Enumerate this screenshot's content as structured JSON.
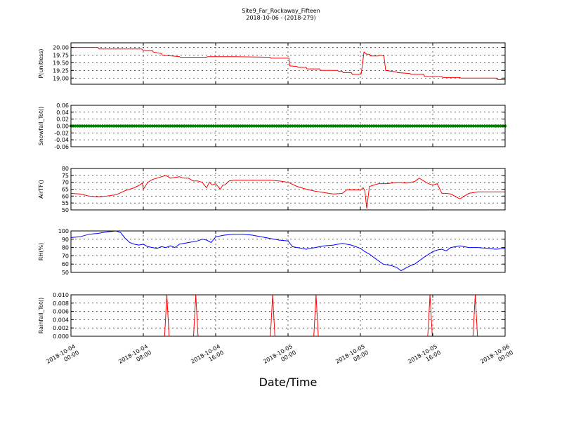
{
  "figure": {
    "title_line1": "Site9_Far_Rockaway_Fifteen",
    "title_line2": "2018-10-06 - (2018-279)",
    "xlabel": "Date/Time",
    "xticks": [
      {
        "t": 0,
        "line1": "2018-10-04",
        "line2": "00:00"
      },
      {
        "t": 8,
        "line1": "2018-10-04",
        "line2": "08:00"
      },
      {
        "t": 16,
        "line1": "2018-10-04",
        "line2": "16:00"
      },
      {
        "t": 24,
        "line1": "2018-10-05",
        "line2": "00:00"
      },
      {
        "t": 32,
        "line1": "2018-10-05",
        "line2": "08:00"
      },
      {
        "t": 40,
        "line1": "2018-10-05",
        "line2": "16:00"
      },
      {
        "t": 48,
        "line1": "2018-10-06",
        "line2": "00:00"
      }
    ]
  },
  "chart_data": [
    {
      "type": "line",
      "ylabel": "P(unitless)",
      "ylim": [
        18.8,
        20.15
      ],
      "yticks": [
        "19.00",
        "19.25",
        "19.50",
        "19.75",
        "20.00"
      ],
      "ytick_values": [
        19.0,
        19.25,
        19.5,
        19.75,
        20.0
      ],
      "grid": true,
      "color": "#ff0000",
      "x_hours": [
        0,
        3,
        3.1,
        7.8,
        8,
        9,
        9.1,
        10,
        10.1,
        12,
        12.1,
        15,
        15.1,
        18,
        18.1,
        22,
        22.1,
        24.1,
        24.2,
        25,
        25.1,
        26,
        26.1,
        27.5,
        27.6,
        29.5,
        29.6,
        30,
        30.1,
        31,
        31.1,
        32,
        32.1,
        32.4,
        32.7,
        33,
        33.1,
        34,
        34.1,
        34.6,
        34.8,
        36,
        36.1,
        37.5,
        37.6,
        39,
        39.1,
        41,
        41.1,
        43,
        43.1,
        47,
        47.2,
        48
      ],
      "values": [
        20.0,
        20.0,
        19.95,
        19.95,
        19.9,
        19.9,
        19.85,
        19.8,
        19.75,
        19.7,
        19.68,
        19.68,
        19.7,
        19.7,
        19.7,
        19.68,
        19.65,
        19.65,
        19.4,
        19.38,
        19.35,
        19.35,
        19.3,
        19.3,
        19.25,
        19.25,
        19.22,
        19.22,
        19.18,
        19.18,
        19.12,
        19.12,
        19.15,
        19.85,
        19.78,
        19.78,
        19.72,
        19.72,
        19.75,
        19.72,
        19.25,
        19.2,
        19.18,
        19.15,
        19.12,
        19.12,
        19.05,
        19.05,
        19.02,
        19.02,
        19.0,
        19.0,
        18.95,
        18.95
      ]
    },
    {
      "type": "scatter",
      "ylabel": "Snowfall_Tot()",
      "ylim": [
        -0.06,
        0.06
      ],
      "yticks": [
        "-0.06",
        "-0.04",
        "-0.02",
        "0.00",
        "0.02",
        "0.04",
        "0.06"
      ],
      "ytick_values": [
        -0.06,
        -0.04,
        -0.02,
        0.0,
        0.02,
        0.04,
        0.06
      ],
      "grid": true,
      "color": "#007f00",
      "constant_value": 0.0,
      "x_range_hours": [
        0,
        48
      ]
    },
    {
      "type": "line",
      "ylabel": "AirTF()",
      "ylim": [
        50,
        80
      ],
      "yticks": [
        "50",
        "55",
        "60",
        "65",
        "70",
        "75",
        "80"
      ],
      "ytick_values": [
        50,
        55,
        60,
        65,
        70,
        75,
        80
      ],
      "grid": true,
      "color": "#ff0000",
      "x_hours": [
        0,
        1,
        2,
        3,
        4,
        5,
        6,
        7,
        7.6,
        7.9,
        8,
        8.5,
        9,
        9.5,
        10,
        10.5,
        11,
        11.5,
        12,
        12.5,
        13,
        13.5,
        14,
        14.5,
        15,
        15.3,
        15.6,
        16,
        16.5,
        16.8,
        17,
        17.5,
        18,
        19,
        20,
        21,
        22,
        23,
        24,
        25,
        26,
        27,
        28,
        29,
        30,
        30.5,
        31,
        31.5,
        32,
        32.3,
        32.5,
        32.7,
        33,
        33.5,
        34,
        35,
        36,
        36.5,
        37,
        38,
        38.5,
        39,
        39.5,
        40,
        40.5,
        41,
        41.5,
        42,
        43,
        44,
        45,
        46,
        47,
        48
      ],
      "values": [
        62,
        61.5,
        60,
        59.5,
        60,
        61,
        64,
        66,
        68,
        69.5,
        65,
        70,
        72,
        73,
        74,
        75,
        73,
        73.5,
        74,
        73,
        73,
        71,
        71,
        70,
        66,
        70,
        68,
        69,
        65,
        68,
        68,
        71,
        71.5,
        71.5,
        71.5,
        71.5,
        71.5,
        71,
        70,
        67,
        65,
        63.5,
        62.5,
        61.5,
        62,
        64.5,
        64.5,
        64.5,
        64.5,
        66,
        64,
        51,
        67,
        68,
        69,
        69,
        70,
        70,
        69.5,
        70.5,
        73,
        71,
        69,
        68,
        69,
        62,
        62,
        61.5,
        58,
        62,
        63,
        63,
        63,
        63
      ]
    },
    {
      "type": "line",
      "ylabel": "RH(%)",
      "ylim": [
        50,
        100
      ],
      "yticks": [
        "50",
        "60",
        "70",
        "80",
        "90",
        "100"
      ],
      "ytick_values": [
        50,
        60,
        70,
        80,
        90,
        100
      ],
      "grid": true,
      "color": "#0000ff",
      "x_hours": [
        0,
        1,
        2,
        3,
        4,
        5,
        5.5,
        6,
        6.5,
        7,
        7.5,
        8,
        8.5,
        9,
        9.5,
        10,
        10.5,
        11,
        11.5,
        12,
        13,
        14,
        14.5,
        15,
        15.5,
        16,
        17,
        18,
        19,
        20,
        21,
        22,
        23,
        24,
        24.5,
        25,
        26,
        27,
        28,
        29,
        30,
        31,
        32,
        32.5,
        33,
        33.5,
        34,
        34.5,
        35,
        35.5,
        36,
        36.5,
        37,
        37.5,
        38,
        39,
        40,
        40.5,
        41,
        41.5,
        42,
        43,
        44,
        45,
        46,
        47,
        48
      ],
      "values": [
        92,
        93,
        96,
        97,
        99,
        100,
        98,
        91,
        86,
        84,
        83,
        84,
        81,
        80,
        79,
        81,
        80,
        82,
        80,
        84,
        86,
        88,
        90,
        89,
        86,
        93,
        95,
        96,
        96,
        95,
        93,
        91,
        89,
        88,
        81,
        80,
        78,
        80,
        82,
        83,
        85,
        83,
        79,
        75,
        72,
        68,
        64,
        60,
        59,
        58,
        56,
        52,
        55,
        58,
        60,
        68,
        75,
        77,
        78,
        76,
        80,
        82,
        80,
        80,
        79,
        78,
        79
      ]
    },
    {
      "type": "line",
      "ylabel": "Rainfall_Tot()",
      "ylim": [
        0,
        0.01
      ],
      "yticks": [
        "0.000",
        "0.002",
        "0.004",
        "0.006",
        "0.008",
        "0.010"
      ],
      "ytick_values": [
        0,
        0.002,
        0.004,
        0.006,
        0.008,
        0.01
      ],
      "grid": true,
      "color": "#ff0000",
      "spike_hours": [
        10.6,
        13.8,
        22.3,
        27.1,
        39.7,
        44.7
      ],
      "spike_value": 0.01,
      "spike_halfwidth_hours": 0.25
    }
  ]
}
